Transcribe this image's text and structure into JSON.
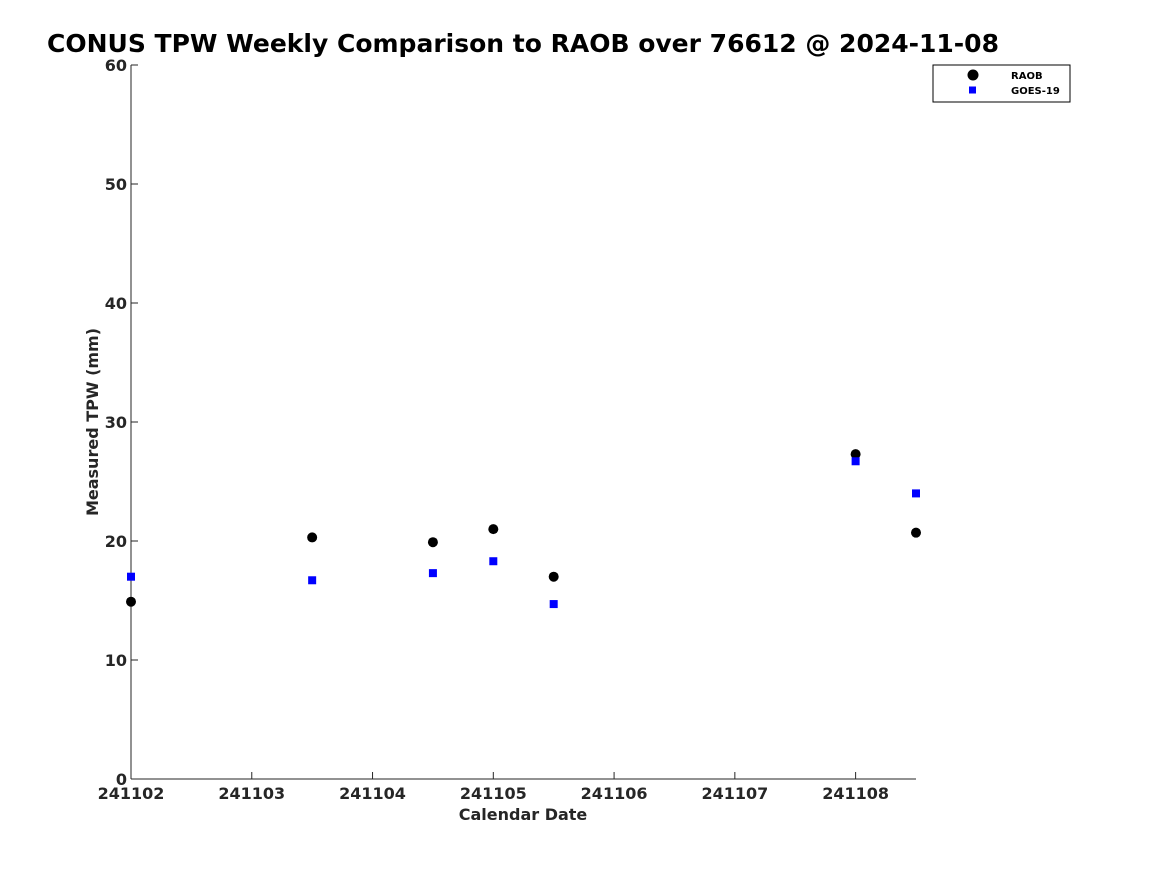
{
  "chart_data": {
    "type": "scatter",
    "title": "CONUS TPW Weekly Comparison to RAOB over 76612 @ 2024-11-08",
    "xlabel": "Calendar Date",
    "ylabel": "Measured TPW (mm)",
    "x_tick_labels": [
      "241102",
      "241103",
      "241104",
      "241105",
      "241106",
      "241107",
      "241108"
    ],
    "xlim": [
      0,
      6.5
    ],
    "ylim": [
      0,
      60
    ],
    "y_ticks": [
      0,
      10,
      20,
      30,
      40,
      50,
      60
    ],
    "grid": false,
    "legend_position": "top-right",
    "series": [
      {
        "name": "RAOB",
        "marker": "circle",
        "color": "#000000",
        "points": [
          [
            0,
            14.9
          ],
          [
            1.5,
            20.3
          ],
          [
            2.5,
            19.9
          ],
          [
            3,
            21.0
          ],
          [
            3.5,
            17.0
          ],
          [
            6,
            27.3
          ],
          [
            6.5,
            20.7
          ]
        ]
      },
      {
        "name": "GOES-19",
        "marker": "square",
        "color": "#0000ff",
        "points": [
          [
            0,
            17.0
          ],
          [
            1.5,
            16.7
          ],
          [
            2.5,
            17.3
          ],
          [
            3,
            18.3
          ],
          [
            3.5,
            14.7
          ],
          [
            6,
            26.7
          ],
          [
            6.5,
            24.0
          ]
        ]
      }
    ]
  }
}
